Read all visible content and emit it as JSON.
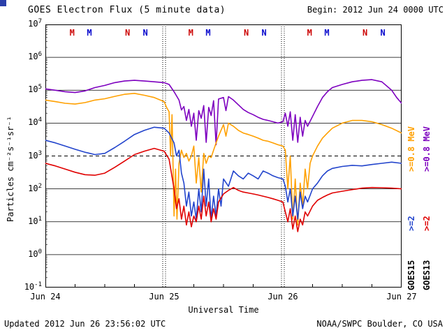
{
  "header": {
    "begin_label": "Begin: 2012 Jun 24 0000 UTC"
  },
  "footer": {
    "updated": "Updated 2012 Jun 26 23:56:02 UTC",
    "source": "NOAA/SWPC Boulder, CO USA"
  },
  "right_legend": {
    "goes15": {
      "high": ">=0.8 MeV",
      "low": ">=2",
      "satellite": "GOES15"
    },
    "goes13": {
      "high": ">=0.8 MeV",
      "low": ">=2",
      "satellite": "GOES13"
    }
  },
  "chart_data": {
    "type": "line",
    "title": "GOES Electron Flux (5 minute data)",
    "xlabel": "Universal Time",
    "ylabel": "Particles cm⁻²s⁻¹sr⁻¹",
    "y_scale": "log10",
    "y_exponent_range": [
      -1,
      7
    ],
    "x_range_hours": [
      0,
      72
    ],
    "x_tick_hours": [
      0,
      24,
      48,
      72
    ],
    "x_tick_labels": [
      "Jun 24",
      "Jun 25",
      "Jun 26",
      "Jun 27"
    ],
    "x_minor_tick_step_hours": 6,
    "grid": "solid horizontal line at each decade",
    "legend_position": "right, rotated",
    "threshold": {
      "value": 1000,
      "style": "dashed"
    },
    "day_boundary_dotted_hours": [
      24,
      48
    ],
    "series": [
      {
        "name": "GOES13 >=0.8 MeV",
        "color": "#7d00bf",
        "points": [
          [
            0,
            110000.0
          ],
          [
            2,
            100000.0
          ],
          [
            4,
            90000.0
          ],
          [
            6,
            85000.0
          ],
          [
            8,
            95000.0
          ],
          [
            10,
            120000.0
          ],
          [
            12,
            140000.0
          ],
          [
            14,
            170000.0
          ],
          [
            16,
            190000.0
          ],
          [
            18,
            200000.0
          ],
          [
            20,
            190000.0
          ],
          [
            22,
            180000.0
          ],
          [
            24,
            170000.0
          ],
          [
            25,
            150000.0
          ],
          [
            26,
            90000.0
          ],
          [
            27,
            50000.0
          ],
          [
            27.5,
            25000.0
          ],
          [
            28,
            32000.0
          ],
          [
            28.5,
            12000.0
          ],
          [
            29,
            26000.0
          ],
          [
            29.5,
            8000.0
          ],
          [
            30,
            20000.0
          ],
          [
            30.5,
            3000.0
          ],
          [
            31,
            24000.0
          ],
          [
            31.5,
            14000.0
          ],
          [
            32,
            34000.0
          ],
          [
            32.5,
            2600.0
          ],
          [
            33,
            30000.0
          ],
          [
            33.5,
            17000.0
          ],
          [
            34,
            48000.0
          ],
          [
            34.5,
            2200.0
          ],
          [
            35,
            54000.0
          ],
          [
            36,
            60000.0
          ],
          [
            36.5,
            24000.0
          ],
          [
            37,
            64000.0
          ],
          [
            38,
            50000.0
          ],
          [
            39,
            36000.0
          ],
          [
            40,
            26000.0
          ],
          [
            41,
            21000.0
          ],
          [
            42,
            18000.0
          ],
          [
            43,
            15000.0
          ],
          [
            44,
            13000.0
          ],
          [
            45,
            12000.0
          ],
          [
            46,
            11000.0
          ],
          [
            47,
            10000.0
          ],
          [
            48,
            11000.0
          ],
          [
            48.5,
            20000.0
          ],
          [
            49,
            8000.0
          ],
          [
            49.5,
            22000.0
          ],
          [
            50,
            3000.0
          ],
          [
            50.5,
            18000.0
          ],
          [
            51,
            2600.0
          ],
          [
            51.5,
            15000.0
          ],
          [
            52,
            4000.0
          ],
          [
            52.5,
            12000.0
          ],
          [
            53,
            8000.0
          ],
          [
            54,
            16000.0
          ],
          [
            55,
            32000.0
          ],
          [
            56,
            60000.0
          ],
          [
            57,
            90000.0
          ],
          [
            58,
            120000.0
          ],
          [
            60,
            150000.0
          ],
          [
            62,
            180000.0
          ],
          [
            64,
            200000.0
          ],
          [
            66,
            210000.0
          ],
          [
            68,
            180000.0
          ],
          [
            70,
            100000.0
          ],
          [
            71,
            60000.0
          ],
          [
            72,
            40000.0
          ]
        ]
      },
      {
        "name": "GOES15 >=0.8 MeV",
        "color": "#ffa000",
        "points": [
          [
            0,
            50000.0
          ],
          [
            2,
            45000.0
          ],
          [
            4,
            40000.0
          ],
          [
            6,
            38000.0
          ],
          [
            8,
            42000.0
          ],
          [
            10,
            50000.0
          ],
          [
            12,
            55000.0
          ],
          [
            14,
            65000.0
          ],
          [
            16,
            75000.0
          ],
          [
            18,
            80000.0
          ],
          [
            20,
            70000.0
          ],
          [
            22,
            60000.0
          ],
          [
            24,
            45000.0
          ],
          [
            24.5,
            30000.0
          ],
          [
            25,
            22000.0
          ],
          [
            25.3,
            1000.0
          ],
          [
            25.6,
            18000.0
          ],
          [
            26,
            15
          ],
          [
            26.3,
            400
          ],
          [
            26.6,
            12
          ],
          [
            27,
            600
          ],
          [
            27.5,
            1500.0
          ],
          [
            28,
            900
          ],
          [
            28.5,
            1200.0
          ],
          [
            29,
            700
          ],
          [
            29.5,
            1000.0
          ],
          [
            30,
            2000.0
          ],
          [
            30.5,
            150
          ],
          [
            31,
            900
          ],
          [
            31.5,
            80
          ],
          [
            32,
            1200.0
          ],
          [
            32.5,
            600
          ],
          [
            33,
            1000.0
          ],
          [
            33.5,
            900
          ],
          [
            34,
            1500.0
          ],
          [
            34.5,
            2500.0
          ],
          [
            35,
            4000.0
          ],
          [
            36,
            9000.0
          ],
          [
            36.5,
            4000.0
          ],
          [
            37,
            10000.0
          ],
          [
            38,
            8000.0
          ],
          [
            39,
            6000.0
          ],
          [
            40,
            5000.0
          ],
          [
            41,
            4500.0
          ],
          [
            42,
            4000.0
          ],
          [
            43,
            3500.0
          ],
          [
            44,
            3000.0
          ],
          [
            45,
            2800.0
          ],
          [
            46,
            2500.0
          ],
          [
            47,
            2200.0
          ],
          [
            48,
            2000.0
          ],
          [
            48.5,
            1500.0
          ],
          [
            49,
            100
          ],
          [
            49.5,
            1000.0
          ],
          [
            50,
            12
          ],
          [
            50.5,
            200
          ],
          [
            51,
            8
          ],
          [
            51.5,
            150
          ],
          [
            52,
            30
          ],
          [
            52.5,
            400
          ],
          [
            53,
            100
          ],
          [
            53.5,
            600
          ],
          [
            54,
            1000.0
          ],
          [
            55,
            2000.0
          ],
          [
            56,
            3500.0
          ],
          [
            57,
            5000.0
          ],
          [
            58,
            7000.0
          ],
          [
            60,
            10000.0
          ],
          [
            62,
            12000.0
          ],
          [
            64,
            12000.0
          ],
          [
            66,
            11000.0
          ],
          [
            68,
            9000.0
          ],
          [
            70,
            7000.0
          ],
          [
            72,
            5000.0
          ]
        ]
      },
      {
        "name": "GOES15 >=2 MeV",
        "color": "#2244cc",
        "points": [
          [
            0,
            3000.0
          ],
          [
            2,
            2500.0
          ],
          [
            4,
            2000.0
          ],
          [
            6,
            1600.0
          ],
          [
            8,
            1300.0
          ],
          [
            10,
            1100.0
          ],
          [
            12,
            1200.0
          ],
          [
            14,
            1800.0
          ],
          [
            16,
            2800.0
          ],
          [
            18,
            4500.0
          ],
          [
            20,
            6000.0
          ],
          [
            22,
            7500.0
          ],
          [
            24,
            7000.0
          ],
          [
            25,
            5000.0
          ],
          [
            26,
            2500.0
          ],
          [
            26.5,
            1000.0
          ],
          [
            27,
            1500.0
          ],
          [
            27.5,
            300
          ],
          [
            28,
            150
          ],
          [
            28.5,
            30
          ],
          [
            29,
            80
          ],
          [
            29.5,
            15
          ],
          [
            30,
            40
          ],
          [
            30.5,
            12
          ],
          [
            31,
            100
          ],
          [
            31.5,
            20
          ],
          [
            32,
            400
          ],
          [
            32.5,
            30
          ],
          [
            33,
            200
          ],
          [
            33.5,
            12
          ],
          [
            34,
            60
          ],
          [
            34.5,
            15
          ],
          [
            35,
            100
          ],
          [
            35.5,
            30
          ],
          [
            36,
            200
          ],
          [
            37,
            120
          ],
          [
            38,
            350
          ],
          [
            39,
            250
          ],
          [
            40,
            200
          ],
          [
            41,
            300
          ],
          [
            42,
            250
          ],
          [
            43,
            200
          ],
          [
            44,
            350
          ],
          [
            45,
            300
          ],
          [
            46,
            250
          ],
          [
            47,
            220
          ],
          [
            48,
            200
          ],
          [
            48.5,
            120
          ],
          [
            49,
            40
          ],
          [
            49.5,
            100
          ],
          [
            50,
            15
          ],
          [
            50.5,
            60
          ],
          [
            51,
            12
          ],
          [
            51.5,
            80
          ],
          [
            52,
            25
          ],
          [
            52.5,
            60
          ],
          [
            53,
            40
          ],
          [
            54,
            100
          ],
          [
            55,
            150
          ],
          [
            56,
            250
          ],
          [
            57,
            350
          ],
          [
            58,
            420
          ],
          [
            60,
            480
          ],
          [
            62,
            520
          ],
          [
            64,
            500
          ],
          [
            66,
            550
          ],
          [
            68,
            600
          ],
          [
            70,
            650
          ],
          [
            72,
            600
          ]
        ]
      },
      {
        "name": "GOES13 >=2 MeV",
        "color": "#e00000",
        "points": [
          [
            0,
            600
          ],
          [
            2,
            500
          ],
          [
            4,
            400
          ],
          [
            6,
            320
          ],
          [
            8,
            270
          ],
          [
            10,
            260
          ],
          [
            12,
            300
          ],
          [
            14,
            450
          ],
          [
            16,
            700
          ],
          [
            18,
            1100.0
          ],
          [
            20,
            1400.0
          ],
          [
            22,
            1700.0
          ],
          [
            24,
            1400.0
          ],
          [
            25,
            800
          ],
          [
            26,
            100
          ],
          [
            26.5,
            25
          ],
          [
            27,
            50
          ],
          [
            27.5,
            12
          ],
          [
            28,
            30
          ],
          [
            28.5,
            8
          ],
          [
            29,
            20
          ],
          [
            29.5,
            7
          ],
          [
            30,
            15
          ],
          [
            30.5,
            10
          ],
          [
            31,
            30
          ],
          [
            31.5,
            12
          ],
          [
            32,
            60
          ],
          [
            32.5,
            15
          ],
          [
            33,
            40
          ],
          [
            33.5,
            10
          ],
          [
            34,
            25
          ],
          [
            34.5,
            12
          ],
          [
            35,
            40
          ],
          [
            36,
            70
          ],
          [
            37,
            90
          ],
          [
            38,
            110
          ],
          [
            39,
            90
          ],
          [
            40,
            80
          ],
          [
            41,
            75
          ],
          [
            42,
            70
          ],
          [
            43,
            65
          ],
          [
            44,
            60
          ],
          [
            45,
            55
          ],
          [
            46,
            50
          ],
          [
            47,
            45
          ],
          [
            48,
            40
          ],
          [
            48.5,
            20
          ],
          [
            49,
            10
          ],
          [
            49.5,
            25
          ],
          [
            50,
            6
          ],
          [
            50.5,
            15
          ],
          [
            51,
            5
          ],
          [
            51.5,
            12
          ],
          [
            52,
            8
          ],
          [
            52.5,
            20
          ],
          [
            53,
            15
          ],
          [
            54,
            30
          ],
          [
            55,
            45
          ],
          [
            56,
            55
          ],
          [
            57,
            65
          ],
          [
            58,
            75
          ],
          [
            60,
            85
          ],
          [
            62,
            95
          ],
          [
            64,
            105
          ],
          [
            66,
            110
          ],
          [
            68,
            108
          ],
          [
            70,
            105
          ],
          [
            72,
            100
          ]
        ]
      }
    ],
    "top_markers": [
      {
        "label": "M",
        "color": "#cc0000",
        "hour": 5.4
      },
      {
        "label": "M",
        "color": "#0000cc",
        "hour": 8.9
      },
      {
        "label": "N",
        "color": "#cc0000",
        "hour": 16.6
      },
      {
        "label": "N",
        "color": "#0000cc",
        "hour": 20.2
      },
      {
        "label": "M",
        "color": "#cc0000",
        "hour": 29.4
      },
      {
        "label": "M",
        "color": "#0000cc",
        "hour": 32.9
      },
      {
        "label": "N",
        "color": "#cc0000",
        "hour": 40.6
      },
      {
        "label": "N",
        "color": "#0000cc",
        "hour": 44.2
      },
      {
        "label": "M",
        "color": "#cc0000",
        "hour": 53.4
      },
      {
        "label": "M",
        "color": "#0000cc",
        "hour": 56.9
      },
      {
        "label": "N",
        "color": "#cc0000",
        "hour": 64.6
      },
      {
        "label": "N",
        "color": "#0000cc",
        "hour": 68.2
      }
    ]
  }
}
